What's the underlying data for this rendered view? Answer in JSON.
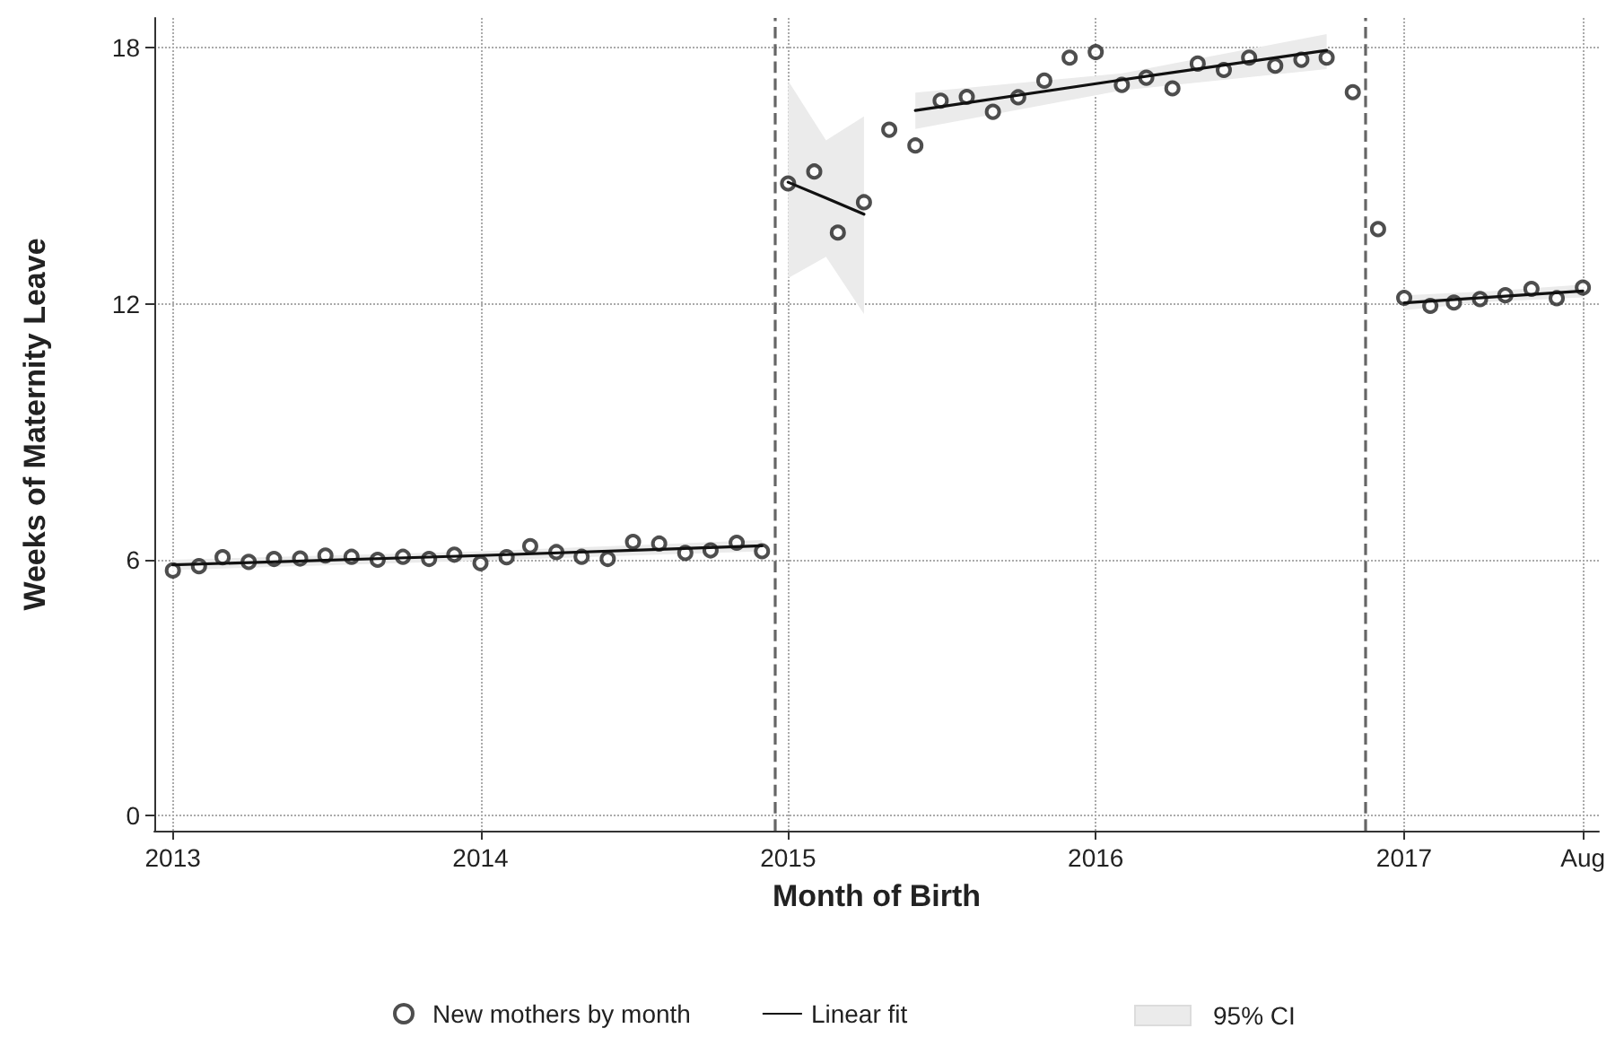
{
  "chart_data": {
    "type": "scatter",
    "xlabel": "Month of Birth",
    "ylabel": "Weeks of Maternity Leave",
    "xlim": [
      "2012-12-10",
      "2017-08-20"
    ],
    "ylim": [
      -0.35,
      18.7
    ],
    "xticks": [
      "2013",
      "2014",
      "2015",
      "2016",
      "2017",
      {
        "value": "2017-08",
        "label": "Aug"
      }
    ],
    "yticks": [
      0,
      6,
      12,
      18
    ],
    "grid": true,
    "legend": "bottom",
    "annotations": [
      "95% CI"
    ],
    "ref_lines": [
      {
        "axis": "x",
        "value": "2014-12-16",
        "color": "#666666",
        "line_style": "dashed"
      },
      {
        "axis": "x",
        "value": "2016-11-16",
        "color": "#666666",
        "line_style": "dashed"
      }
    ],
    "series": [
      {
        "type": "line",
        "name": "Linear fit",
        "color": "#111111",
        "marker": "none",
        "line_style": "solid",
        "x": [
          "2013-01",
          "2014-01",
          "2014-12",
          "2014-12-20",
          "2015-01",
          "2015-02-15",
          "2015-04",
          "2015-05",
          "2015-06",
          "2016-02",
          "2016-10",
          "2016-12",
          "2017-01",
          "2017-04-15",
          "2017-08"
        ],
        "values": [
          5.88,
          6.1,
          6.33,
          null,
          14.85,
          14.48,
          14.1,
          null,
          16.53,
          17.25,
          17.94,
          null,
          12.02,
          12.16,
          12.3
        ],
        "lower": [
          5.76,
          5.98,
          6.2,
          null,
          12.6,
          13.1,
          11.76,
          null,
          16.1,
          17.0,
          17.5,
          null,
          11.85,
          12.05,
          12.15
        ],
        "upper": [
          6.0,
          6.2,
          6.46,
          null,
          17.23,
          15.83,
          16.39,
          null,
          16.95,
          17.4,
          18.32,
          null,
          12.2,
          12.3,
          12.45
        ]
      },
      {
        "name": "New mothers by month",
        "color": "#222222",
        "marker": "circle",
        "x": [
          "2013-01",
          "2013-02",
          "2013-03",
          "2013-04",
          "2013-05",
          "2013-06",
          "2013-07",
          "2013-08",
          "2013-09",
          "2013-10",
          "2013-11",
          "2013-12",
          "2014-01",
          "2014-02",
          "2014-03",
          "2014-04",
          "2014-05",
          "2014-06",
          "2014-07",
          "2014-08",
          "2014-09",
          "2014-10",
          "2014-11",
          "2014-12",
          "2015-01",
          "2015-02",
          "2015-03",
          "2015-04",
          "2015-05",
          "2015-06",
          "2015-07",
          "2015-08",
          "2015-09",
          "2015-10",
          "2015-11",
          "2015-12",
          "2016-01",
          "2016-02",
          "2016-03",
          "2016-04",
          "2016-05",
          "2016-06",
          "2016-07",
          "2016-08",
          "2016-09",
          "2016-10",
          "2016-11",
          "2016-12",
          "2017-01",
          "2017-02",
          "2017-03",
          "2017-04",
          "2017-05",
          "2017-06",
          "2017-07",
          "2017-08"
        ],
        "values": [
          5.75,
          5.85,
          6.06,
          5.95,
          6.02,
          6.03,
          6.1,
          6.07,
          6.0,
          6.07,
          6.02,
          6.12,
          5.92,
          6.06,
          6.32,
          6.18,
          6.07,
          6.02,
          6.42,
          6.38,
          6.16,
          6.22,
          6.4,
          6.2,
          14.82,
          15.1,
          13.67,
          14.38,
          16.08,
          15.71,
          16.76,
          16.85,
          16.5,
          16.84,
          17.23,
          17.77,
          17.9,
          17.13,
          17.3,
          17.05,
          17.63,
          17.48,
          17.77,
          17.58,
          17.72,
          17.77,
          16.96,
          13.75,
          12.14,
          11.95,
          12.03,
          12.11,
          12.2,
          12.35,
          12.13,
          12.38
        ]
      }
    ]
  }
}
